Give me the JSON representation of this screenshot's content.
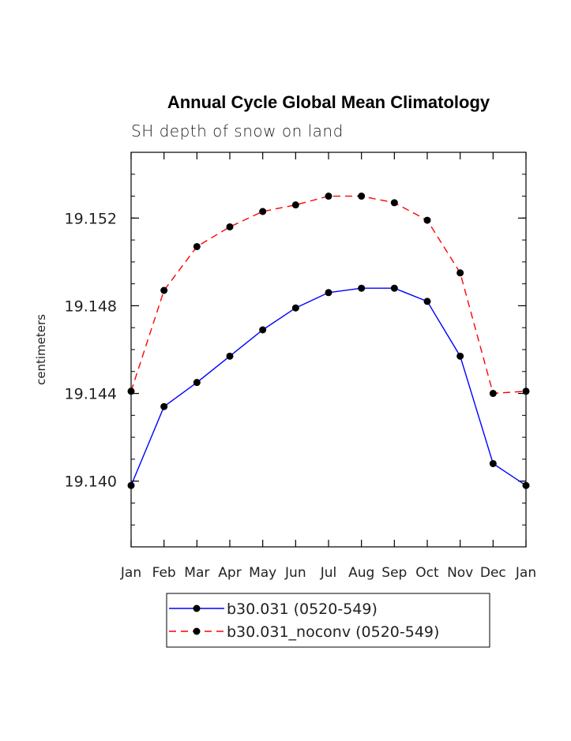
{
  "chart_data": {
    "type": "line",
    "title": "Annual Cycle Global Mean Climatology",
    "subtitle": "SH depth of snow on land",
    "xlabel": "",
    "ylabel": "centimeters",
    "categories": [
      "Jan",
      "Feb",
      "Mar",
      "Apr",
      "May",
      "Jun",
      "Jul",
      "Aug",
      "Sep",
      "Oct",
      "Nov",
      "Dec",
      "Jan"
    ],
    "ylim": [
      19.137,
      19.155
    ],
    "yticks": [
      19.14,
      19.144,
      19.148,
      19.152
    ],
    "ytick_labels": [
      "19.140",
      "19.144",
      "19.148",
      "19.152"
    ],
    "grid": false,
    "legend_position": "bottom-center",
    "series": [
      {
        "name": "b30.031 (0520-549)",
        "color": "#0000ff",
        "style": "solid",
        "values": [
          19.1398,
          19.1434,
          19.1445,
          19.1457,
          19.1469,
          19.1479,
          19.1486,
          19.1488,
          19.1488,
          19.1482,
          19.1457,
          19.1408,
          19.1398
        ]
      },
      {
        "name": "b30.031_noconv (0520-549)",
        "color": "#ff0000",
        "style": "dashed",
        "values": [
          19.1441,
          19.1487,
          19.1507,
          19.1516,
          19.1523,
          19.1526,
          19.153,
          19.153,
          19.1527,
          19.1519,
          19.1495,
          19.144,
          19.1441
        ]
      }
    ]
  }
}
